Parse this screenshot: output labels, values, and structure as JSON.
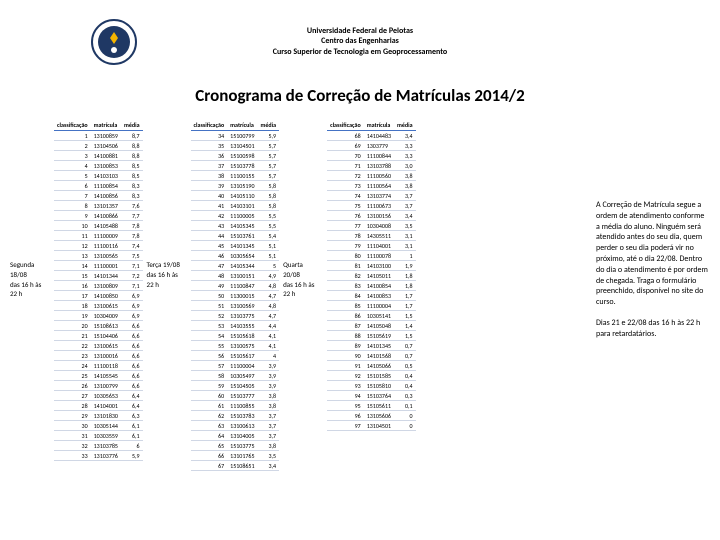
{
  "header": {
    "line1": "Universidade Federal de Pelotas",
    "line2": "Centro das Engenharias",
    "line3": "Curso Superior de Tecnologia em Geoprocessamento"
  },
  "title": {
    "text": "Cronograma de Correção de Matrículas 2014/2",
    "fontsize": 17
  },
  "col_headers": [
    "classificação",
    "matrícula",
    "média"
  ],
  "groups": [
    {
      "label": [
        "Segunda",
        "18/08",
        "das 16 h às",
        "22 h"
      ],
      "rows": [
        [
          1,
          "13100859",
          "8,7"
        ],
        [
          2,
          "13104506",
          "8,8"
        ],
        [
          3,
          "14100881",
          "8,8"
        ],
        [
          4,
          "13100853",
          "8,5"
        ],
        [
          5,
          "14103103",
          "8,5"
        ],
        [
          6,
          "11100854",
          "8,3"
        ],
        [
          7,
          "14100856",
          "8,3"
        ],
        [
          8,
          "13101357",
          "7,6"
        ],
        [
          9,
          "14100866",
          "7,7"
        ],
        [
          10,
          "14105488",
          "7,8"
        ],
        [
          11,
          "11100009",
          "7,8"
        ],
        [
          12,
          "11100116",
          "7,4"
        ],
        [
          13,
          "13100565",
          "7,5"
        ],
        [
          14,
          "11100001",
          "7,1"
        ],
        [
          15,
          "14101344",
          "7,2"
        ],
        [
          16,
          "13100809",
          "7,1"
        ],
        [
          17,
          "14100850",
          "6,9"
        ],
        [
          18,
          "13100615",
          "6,9"
        ],
        [
          19,
          "10304009",
          "6,9"
        ],
        [
          20,
          "15108613",
          "6,6"
        ],
        [
          21,
          "15104406",
          "6,6"
        ],
        [
          22,
          "13100615",
          "6,6"
        ],
        [
          23,
          "13100016",
          "6,6"
        ],
        [
          24,
          "11100118",
          "6,6"
        ],
        [
          25,
          "14105545",
          "6,6"
        ],
        [
          26,
          "13100799",
          "6,6"
        ],
        [
          27,
          "10305653",
          "6,4"
        ],
        [
          28,
          "14104001",
          "6,4"
        ],
        [
          29,
          "13101830",
          "6,3"
        ],
        [
          30,
          "10305144",
          "6,1"
        ],
        [
          31,
          "10303559",
          "6,1"
        ],
        [
          32,
          "13103785",
          "6"
        ],
        [
          33,
          "13103776",
          "5,9"
        ]
      ]
    },
    {
      "label": [
        "",
        "",
        "Terça 19/08",
        "das 16 h às",
        "22 h"
      ],
      "rows": [
        [
          34,
          "15100799",
          "5,9"
        ],
        [
          35,
          "13104501",
          "5,7"
        ],
        [
          36,
          "15100598",
          "5,7"
        ],
        [
          37,
          "15103778",
          "5,7"
        ],
        [
          38,
          "11100155",
          "5,7"
        ],
        [
          39,
          "13105190",
          "5,8"
        ],
        [
          40,
          "14105110",
          "5,8"
        ],
        [
          41,
          "14103101",
          "5,8"
        ],
        [
          42,
          "11100005",
          "5,5"
        ],
        [
          43,
          "14105345",
          "5,5"
        ],
        [
          44,
          "15103761",
          "5,4"
        ],
        [
          45,
          "14101345",
          "5,1"
        ],
        [
          46,
          "10305654",
          "5,1"
        ],
        [
          47,
          "14105344",
          "5"
        ],
        [
          48,
          "13100151",
          "4,9"
        ],
        [
          49,
          "11100847",
          "4,8"
        ],
        [
          50,
          "11300015",
          "4,7"
        ],
        [
          51,
          "13100569",
          "4,8"
        ],
        [
          52,
          "13103775",
          "4,7"
        ],
        [
          53,
          "14103555",
          "4,4"
        ],
        [
          54,
          "15105618",
          "4,1"
        ],
        [
          55,
          "13100575",
          "4,1"
        ],
        [
          56,
          "15105617",
          "4"
        ],
        [
          57,
          "11100004",
          "3,9"
        ],
        [
          58,
          "10305497",
          "3,9"
        ],
        [
          59,
          "15104505",
          "3,9"
        ],
        [
          60,
          "15103777",
          "3,8"
        ],
        [
          61,
          "11100855",
          "3,8"
        ],
        [
          62,
          "15103783",
          "3,7"
        ],
        [
          63,
          "13100613",
          "3,7"
        ],
        [
          64,
          "13104005",
          "3,7"
        ],
        [
          65,
          "15103775",
          "3,8"
        ],
        [
          66,
          "13101765",
          "3,5"
        ],
        [
          67,
          "15108651",
          "3,4"
        ]
      ]
    },
    {
      "label": [
        "Quarta",
        "20/08",
        "das 16 h às",
        "22 h"
      ],
      "rows": [
        [
          68,
          "14104483",
          "3,4"
        ],
        [
          69,
          "1303779",
          "3,3"
        ],
        [
          70,
          "11100844",
          "3,3"
        ],
        [
          71,
          "13103788",
          "3,0"
        ],
        [
          72,
          "11100560",
          "3,8"
        ],
        [
          73,
          "11100564",
          "3,8"
        ],
        [
          74,
          "13103774",
          "3,7"
        ],
        [
          75,
          "11100673",
          "3,7"
        ],
        [
          76,
          "13100156",
          "3,4"
        ],
        [
          77,
          "10304008",
          "3,5"
        ],
        [
          78,
          "14305511",
          "3,1"
        ],
        [
          79,
          "11104001",
          "3,1"
        ],
        [
          80,
          "11100078",
          "1"
        ],
        [
          81,
          "14103100",
          "1,9"
        ],
        [
          82,
          "14105011",
          "1,8"
        ],
        [
          83,
          "14100854",
          "1,8"
        ],
        [
          84,
          "14100853",
          "1,7"
        ],
        [
          85,
          "11100004",
          "1,7"
        ],
        [
          86,
          "10305141",
          "1,5"
        ],
        [
          87,
          "14105048",
          "1,4"
        ],
        [
          88,
          "15105619",
          "1,5"
        ],
        [
          89,
          "14101345",
          "0,7"
        ],
        [
          90,
          "14101568",
          "0,7"
        ],
        [
          91,
          "14105066",
          "0,5"
        ],
        [
          92,
          "15101585",
          "0,4"
        ],
        [
          93,
          "15105810",
          "0,4"
        ],
        [
          94,
          "15103764",
          "0,3"
        ],
        [
          95,
          "15105611",
          "0,1"
        ],
        [
          96,
          "13105606",
          "0"
        ],
        [
          97,
          "13104501",
          "0"
        ]
      ]
    }
  ],
  "note": {
    "p1": "A Correção de Matrícula segue a ordem de atendimento conforme a média do aluno. Ninguém será atendido antes do seu dia, quem perder o seu dia poderá vir no próximo, até o dia 22/08. Dentro do dia o atendimento é por ordem de chegada. Traga o formulário preenchido, disponível no site do curso.",
    "p2": "Dias 21 e 22/08 das 16 h às 22 h para retardatários."
  },
  "colors": {
    "header_rule": "#4472c4",
    "row_border": "#d0d7e5"
  }
}
